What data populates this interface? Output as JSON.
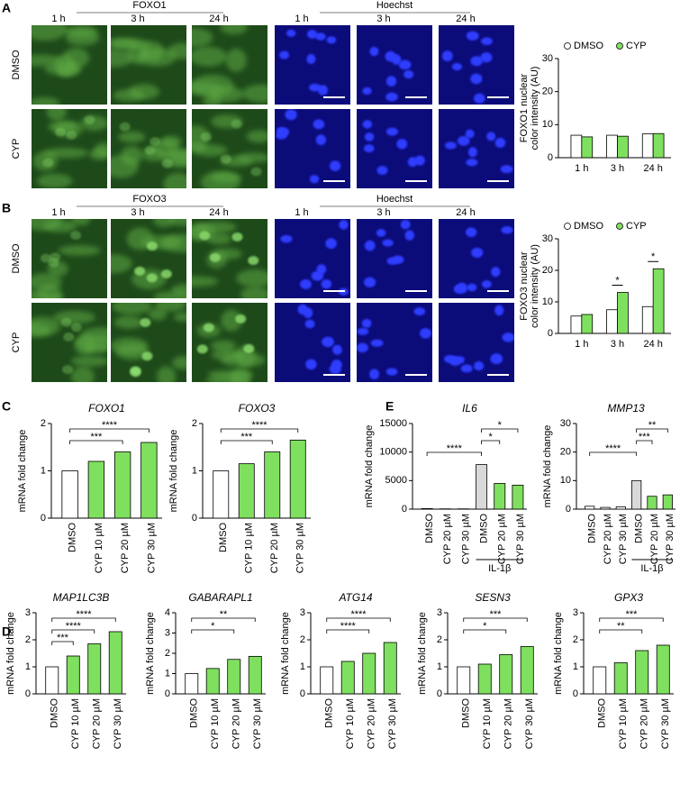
{
  "panels": [
    "A",
    "B",
    "C",
    "D",
    "E"
  ],
  "micrographs": [
    {
      "stains": [
        "FOXO1",
        "Hoechst"
      ],
      "times": [
        "1 h",
        "3 h",
        "24 h"
      ],
      "rows": [
        "DMSO",
        "CYP"
      ],
      "colors": [
        "#8ee07a",
        "#3f6fb0"
      ]
    },
    {
      "stains": [
        "FOXO3",
        "Hoechst"
      ],
      "times": [
        "1 h",
        "3 h",
        "24 h"
      ],
      "rows": [
        "DMSO",
        "CYP"
      ],
      "colors": [
        "#8ee07a",
        "#3f6fb0"
      ]
    }
  ],
  "chart_data": [
    {
      "type": "grouped_bar",
      "y_label": [
        "FOXO1 nuclear",
        "color intensity (AU)"
      ],
      "categories": [
        "1 h",
        "3 h",
        "24 h"
      ],
      "series": [
        {
          "name": "DMSO",
          "color": "#ffffff",
          "values": [
            6.8,
            6.8,
            7.2
          ]
        },
        {
          "name": "CYP",
          "color": "#7fe05f",
          "values": [
            6.3,
            6.5,
            7.3
          ]
        }
      ],
      "ylim": [
        0,
        30
      ],
      "yticks": [
        0,
        10,
        20,
        30
      ],
      "legend": "top",
      "comparisons": []
    },
    {
      "type": "grouped_bar",
      "y_label": [
        "FOXO3 nuclear",
        "color intensity (AU)"
      ],
      "categories": [
        "1 h",
        "3 h",
        "24 h"
      ],
      "series": [
        {
          "name": "DMSO",
          "color": "#ffffff",
          "values": [
            5.5,
            7.5,
            8.5
          ]
        },
        {
          "name": "CYP",
          "color": "#7fe05f",
          "values": [
            6,
            13,
            20.5
          ]
        }
      ],
      "ylim": [
        0,
        30
      ],
      "yticks": [
        0,
        10,
        20,
        30
      ],
      "legend": "top",
      "comparisons": [
        {
          "category": 1,
          "label": "*"
        },
        {
          "category": 2,
          "label": "*"
        }
      ]
    },
    {
      "type": "bar",
      "title": "FOXO1",
      "y_label": "mRNA fold change",
      "categories": [
        "DMSO",
        "CYP 10 µM",
        "CYP 20 µM",
        "CYP 30 µM"
      ],
      "values": [
        1,
        1.2,
        1.4,
        1.6
      ],
      "colors": [
        "#ffffff",
        "#7fe05f",
        "#7fe05f",
        "#7fe05f"
      ],
      "ylim": [
        0,
        2
      ],
      "yticks": [
        0,
        1,
        2
      ],
      "comparisons": [
        {
          "pair": [
            0,
            2
          ],
          "label": "***"
        },
        {
          "pair": [
            0,
            3
          ],
          "label": "****"
        }
      ]
    },
    {
      "type": "bar",
      "title": "FOXO3",
      "y_label": "mRNA fold change",
      "categories": [
        "DMSO",
        "CYP 10 µM",
        "CYP 20 µM",
        "CYP 30 µM"
      ],
      "values": [
        1,
        1.15,
        1.4,
        1.65
      ],
      "colors": [
        "#ffffff",
        "#7fe05f",
        "#7fe05f",
        "#7fe05f"
      ],
      "ylim": [
        0,
        2
      ],
      "yticks": [
        0,
        1,
        2
      ],
      "comparisons": [
        {
          "pair": [
            0,
            2
          ],
          "label": "***"
        },
        {
          "pair": [
            0,
            3
          ],
          "label": "****"
        }
      ]
    },
    {
      "type": "bar",
      "title": "IL6",
      "y_label": "mRNA fold change",
      "categories": [
        "DMSO",
        "CYP 20 µM",
        "CYP 30 µM",
        "DMSO",
        "CYP 20 µM",
        "CYP 30 µM"
      ],
      "values": [
        100,
        50,
        50,
        7800,
        4500,
        4200
      ],
      "colors": [
        "#ffffff",
        "#ffffff",
        "#ffffff",
        "#d9d9d9",
        "#7fe05f",
        "#7fe05f"
      ],
      "ylim": [
        0,
        15000
      ],
      "yticks": [
        0,
        5000,
        10000,
        15000
      ],
      "group": {
        "label": "IL-1β",
        "from": 3,
        "to": 5
      },
      "comparisons": [
        {
          "pair": [
            0,
            3
          ],
          "label": "****"
        },
        {
          "pair": [
            3,
            4
          ],
          "label": "*"
        },
        {
          "pair": [
            3,
            5
          ],
          "label": "*"
        }
      ]
    },
    {
      "type": "bar",
      "title": "MMP13",
      "y_label": "mRNA fold change",
      "categories": [
        "DMSO",
        "CYP 20 µM",
        "CYP 30 µM",
        "DMSO",
        "CYP 20 µM",
        "CYP 30 µM"
      ],
      "values": [
        1,
        0.6,
        0.8,
        10,
        4.5,
        5
      ],
      "colors": [
        "#ffffff",
        "#ffffff",
        "#ffffff",
        "#d9d9d9",
        "#7fe05f",
        "#7fe05f"
      ],
      "ylim": [
        0,
        30
      ],
      "yticks": [
        0,
        10,
        20,
        30
      ],
      "group": {
        "label": "IL-1β",
        "from": 3,
        "to": 5
      },
      "comparisons": [
        {
          "pair": [
            0,
            3
          ],
          "label": "****"
        },
        {
          "pair": [
            3,
            4
          ],
          "label": "***"
        },
        {
          "pair": [
            3,
            5
          ],
          "label": "**"
        }
      ]
    },
    {
      "type": "bar",
      "title": "MAP1LC3B",
      "y_label": "mRNA fold change",
      "categories": [
        "DMSO",
        "CYP 10 µM",
        "CYP 20 µM",
        "CYP 30 µM"
      ],
      "values": [
        1,
        1.4,
        1.85,
        2.3
      ],
      "colors": [
        "#ffffff",
        "#7fe05f",
        "#7fe05f",
        "#7fe05f"
      ],
      "ylim": [
        0,
        3
      ],
      "yticks": [
        0,
        1,
        2,
        3
      ],
      "comparisons": [
        {
          "pair": [
            0,
            1
          ],
          "label": "***"
        },
        {
          "pair": [
            0,
            2
          ],
          "label": "****"
        },
        {
          "pair": [
            0,
            3
          ],
          "label": "****"
        }
      ]
    },
    {
      "type": "bar",
      "title": "GABARAPL1",
      "y_label": "mRNA fold change",
      "categories": [
        "DMSO",
        "CYP 10 µM",
        "CYP 20 µM",
        "CYP 30 µM"
      ],
      "values": [
        1,
        1.25,
        1.7,
        1.85
      ],
      "colors": [
        "#ffffff",
        "#7fe05f",
        "#7fe05f",
        "#7fe05f"
      ],
      "ylim": [
        0,
        4
      ],
      "yticks": [
        0,
        1,
        2,
        3,
        4
      ],
      "comparisons": [
        {
          "pair": [
            0,
            2
          ],
          "label": "*"
        },
        {
          "pair": [
            0,
            3
          ],
          "label": "**"
        }
      ]
    },
    {
      "type": "bar",
      "title": "ATG14",
      "y_label": "mRNA fold change",
      "categories": [
        "DMSO",
        "CYP 10 µM",
        "CYP 20 µM",
        "CYP 30 µM"
      ],
      "values": [
        1,
        1.2,
        1.5,
        1.9
      ],
      "colors": [
        "#ffffff",
        "#7fe05f",
        "#7fe05f",
        "#7fe05f"
      ],
      "ylim": [
        0,
        3
      ],
      "yticks": [
        0,
        1,
        2,
        3
      ],
      "comparisons": [
        {
          "pair": [
            0,
            2
          ],
          "label": "****"
        },
        {
          "pair": [
            0,
            3
          ],
          "label": "****"
        }
      ]
    },
    {
      "type": "bar",
      "title": "SESN3",
      "y_label": "mRNA fold change",
      "categories": [
        "DMSO",
        "CYP 10 µM",
        "CYP 20 µM",
        "CYP 30 µM"
      ],
      "values": [
        1,
        1.1,
        1.45,
        1.75
      ],
      "colors": [
        "#ffffff",
        "#7fe05f",
        "#7fe05f",
        "#7fe05f"
      ],
      "ylim": [
        0,
        3
      ],
      "yticks": [
        0,
        1,
        2,
        3
      ],
      "comparisons": [
        {
          "pair": [
            0,
            2
          ],
          "label": "*"
        },
        {
          "pair": [
            0,
            3
          ],
          "label": "***"
        }
      ]
    },
    {
      "type": "bar",
      "title": "GPX3",
      "y_label": "mRNA fold change",
      "categories": [
        "DMSO",
        "CYP 10 µM",
        "CYP 20 µM",
        "CYP 30 µM"
      ],
      "values": [
        1,
        1.15,
        1.6,
        1.8
      ],
      "colors": [
        "#ffffff",
        "#7fe05f",
        "#7fe05f",
        "#7fe05f"
      ],
      "ylim": [
        0,
        3
      ],
      "yticks": [
        0,
        1,
        2,
        3
      ],
      "comparisons": [
        {
          "pair": [
            0,
            2
          ],
          "label": "**"
        },
        {
          "pair": [
            0,
            3
          ],
          "label": "***"
        }
      ]
    }
  ]
}
